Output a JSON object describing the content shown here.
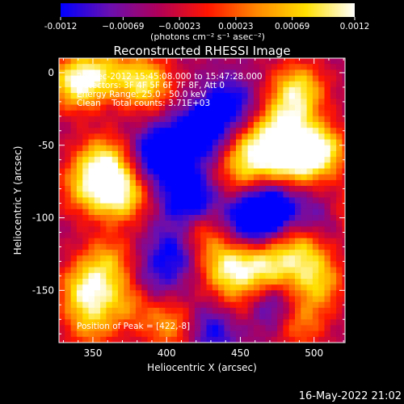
{
  "chart_data": {
    "type": "heatmap",
    "title": "Reconstructed RHESSI Image",
    "xlabel": "Heliocentric X (arcsec)",
    "ylabel": "Heliocentric Y (arcsec)",
    "xlim": [
      327,
      521
    ],
    "ylim": [
      -186,
      10
    ],
    "x_ticks": [
      350,
      400,
      450,
      500
    ],
    "y_ticks": [
      0,
      -50,
      -100,
      -150
    ],
    "colorbar": {
      "min": -0.0012,
      "max": 0.0012,
      "tick_values": [
        -0.0012,
        -0.00069,
        -0.00023,
        0.00023,
        0.00069,
        0.0012
      ],
      "tick_labels": [
        "-0.0012",
        "−0.00069",
        "−0.00023",
        "0.00023",
        "0.00069",
        "0.0012"
      ],
      "unit_label": "(photons cm⁻² s⁻¹ asec⁻²)",
      "colors": [
        "#0000ff",
        "#6a0fb0",
        "#b00058",
        "#ff1500",
        "#ff8800",
        "#ffe000",
        "#ffffff"
      ]
    },
    "annotations": [
      "22-Dec-2012 15:45:08.000 to 15:47:28.000",
      "Detectors: 3F 4F 5F 6F 7F 8F, Att 0",
      "Energy Range: 25.0 - 50.0 keV",
      "Clean    Total counts: 3.71E+03"
    ],
    "peak_annotation": "Position of Peak = [422,-8]",
    "grid": false,
    "sources": [
      {
        "x": 337,
        "y": -5,
        "value": 1.0
      },
      {
        "x": 383,
        "y": -5,
        "value": 0.9
      },
      {
        "x": 356,
        "y": 3,
        "value": 0.55
      },
      {
        "x": 487,
        "y": -10,
        "value": 0.9
      },
      {
        "x": 478,
        "y": -35,
        "value": 0.85
      },
      {
        "x": 502,
        "y": -52,
        "value": 1.0
      },
      {
        "x": 458,
        "y": -52,
        "value": 0.8
      },
      {
        "x": 482,
        "y": -58,
        "value": 0.95
      },
      {
        "x": 355,
        "y": -60,
        "value": 0.9
      },
      {
        "x": 366,
        "y": -82,
        "value": 1.0
      },
      {
        "x": 343,
        "y": -78,
        "value": 0.6
      },
      {
        "x": 448,
        "y": -68,
        "value": 0.45
      },
      {
        "x": 358,
        "y": -128,
        "value": 0.6
      },
      {
        "x": 344,
        "y": -148,
        "value": 0.9
      },
      {
        "x": 375,
        "y": -153,
        "value": 0.7
      },
      {
        "x": 347,
        "y": -172,
        "value": 0.55
      },
      {
        "x": 420,
        "y": -111,
        "value": 0.6
      },
      {
        "x": 441,
        "y": -133,
        "value": 0.95
      },
      {
        "x": 467,
        "y": -132,
        "value": 0.85
      },
      {
        "x": 491,
        "y": -120,
        "value": 0.7
      },
      {
        "x": 500,
        "y": -143,
        "value": 0.7
      },
      {
        "x": 487,
        "y": -170,
        "value": 0.6
      },
      {
        "x": 400,
        "y": -172,
        "value": 0.6
      },
      {
        "x": 448,
        "y": -160,
        "value": 0.35
      },
      {
        "x": 520,
        "y": -95,
        "value": 0.5
      },
      {
        "x": 395,
        "y": -55,
        "value": -0.95
      },
      {
        "x": 420,
        "y": -40,
        "value": -0.8
      },
      {
        "x": 413,
        "y": -85,
        "value": -0.8
      },
      {
        "x": 405,
        "y": -120,
        "value": -0.65
      },
      {
        "x": 455,
        "y": -100,
        "value": -0.75
      },
      {
        "x": 470,
        "y": -90,
        "value": -0.7
      },
      {
        "x": 440,
        "y": -20,
        "value": -0.6
      },
      {
        "x": 385,
        "y": -145,
        "value": -0.55
      },
      {
        "x": 470,
        "y": -160,
        "value": -0.6
      },
      {
        "x": 430,
        "y": -175,
        "value": -0.55
      },
      {
        "x": 505,
        "y": -100,
        "value": -0.45
      }
    ]
  },
  "footer": {
    "timestamp": "16-May-2022 21:02"
  }
}
